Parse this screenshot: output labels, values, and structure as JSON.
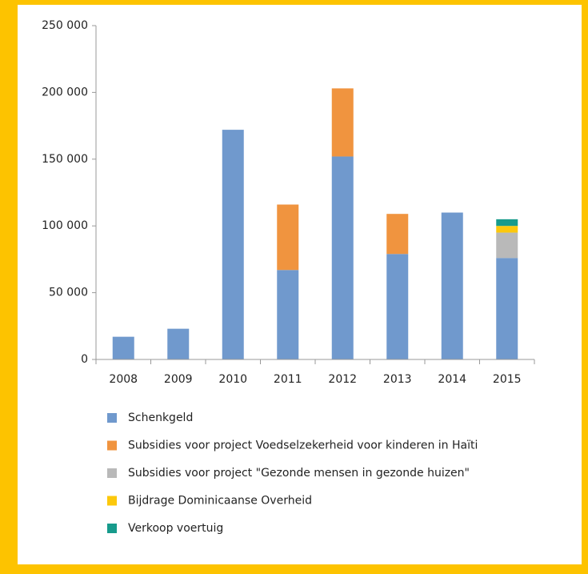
{
  "chart_data": {
    "type": "stacked_bar",
    "categories": [
      "2008",
      "2009",
      "2010",
      "2011",
      "2012",
      "2013",
      "2014",
      "2015"
    ],
    "series": [
      {
        "name": "Schenkgeld",
        "color": "#7099cd",
        "values": [
          17000,
          23000,
          172000,
          67000,
          152000,
          79000,
          110000,
          76000
        ]
      },
      {
        "name": "Subsidies voor project Voedselzekerheid voor kinderen in Haïti",
        "color": "#f0943f",
        "values": [
          null,
          null,
          null,
          49000,
          51000,
          30000,
          null,
          null
        ]
      },
      {
        "name": "Subsidies voor project \"Gezonde mensen in gezonde huizen\"",
        "color": "#b9b9b9",
        "values": [
          null,
          null,
          null,
          null,
          null,
          null,
          null,
          19000
        ]
      },
      {
        "name": "Bijdrage Dominicaanse Overheid",
        "color": "#fcc80c",
        "values": [
          null,
          null,
          null,
          null,
          null,
          null,
          null,
          5000
        ]
      },
      {
        "name": "Verkoop voertuig",
        "color": "#179b8c",
        "values": [
          null,
          null,
          null,
          null,
          null,
          null,
          null,
          5000
        ]
      }
    ],
    "ylim": [
      0,
      250000
    ],
    "yticks": [
      0,
      {
        "value": 50000,
        "label": "50 000"
      },
      {
        "value": 100000,
        "label": "100 000"
      },
      {
        "value": 150000,
        "label": "150 000"
      },
      {
        "value": 200000,
        "label": "200 000"
      },
      {
        "value": 250000,
        "label": "250 000"
      }
    ],
    "grid": false,
    "legend": "bottom"
  }
}
